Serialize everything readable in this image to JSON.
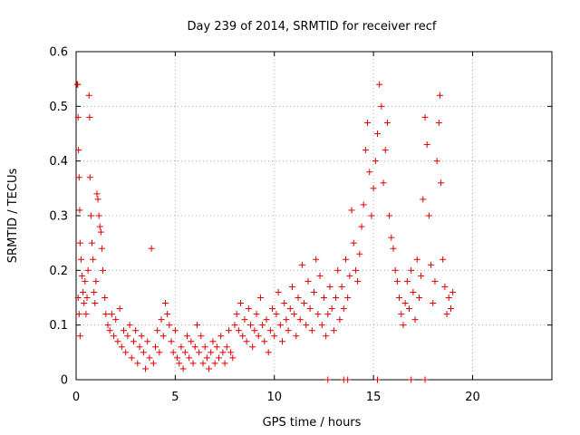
{
  "chart_data": {
    "type": "scatter",
    "title": "Day 239 of 2014, SRMTID for receiver recf",
    "xlabel": "GPS time / hours",
    "ylabel": "SRMTID / TECUs",
    "xlim": [
      0,
      24
    ],
    "ylim": [
      0,
      0.6
    ],
    "xticks": [
      0,
      5,
      10,
      15,
      20
    ],
    "xtick_labels": [
      "0",
      "5",
      "10",
      "15",
      "20"
    ],
    "yticks": [
      0,
      0.1,
      0.2,
      0.3,
      0.4,
      0.5,
      0.6
    ],
    "ytick_labels": [
      "0",
      "0.1",
      "0.2",
      "0.3",
      "0.4",
      "0.5",
      "0.6"
    ],
    "grid": true,
    "marker": "+",
    "color": "#e00000",
    "series": [
      {
        "name": "SRMTID",
        "points": [
          [
            0.05,
            0.54
          ],
          [
            0.08,
            0.54
          ],
          [
            0.1,
            0.48
          ],
          [
            0.12,
            0.42
          ],
          [
            0.15,
            0.37
          ],
          [
            0.18,
            0.31
          ],
          [
            0.2,
            0.25
          ],
          [
            0.1,
            0.15
          ],
          [
            0.15,
            0.12
          ],
          [
            0.2,
            0.08
          ],
          [
            0.25,
            0.22
          ],
          [
            0.3,
            0.19
          ],
          [
            0.35,
            0.16
          ],
          [
            0.4,
            0.14
          ],
          [
            0.45,
            0.18
          ],
          [
            0.5,
            0.12
          ],
          [
            0.55,
            0.15
          ],
          [
            0.6,
            0.2
          ],
          [
            0.65,
            0.52
          ],
          [
            0.68,
            0.48
          ],
          [
            0.7,
            0.37
          ],
          [
            0.75,
            0.3
          ],
          [
            0.8,
            0.25
          ],
          [
            0.85,
            0.22
          ],
          [
            0.9,
            0.16
          ],
          [
            0.95,
            0.14
          ],
          [
            1.0,
            0.18
          ],
          [
            1.05,
            0.34
          ],
          [
            1.1,
            0.33
          ],
          [
            1.15,
            0.3
          ],
          [
            1.2,
            0.28
          ],
          [
            1.25,
            0.27
          ],
          [
            1.3,
            0.24
          ],
          [
            1.35,
            0.2
          ],
          [
            1.45,
            0.15
          ],
          [
            1.5,
            0.12
          ],
          [
            1.6,
            0.1
          ],
          [
            1.7,
            0.09
          ],
          [
            1.8,
            0.12
          ],
          [
            1.9,
            0.08
          ],
          [
            2.0,
            0.11
          ],
          [
            2.1,
            0.07
          ],
          [
            2.2,
            0.13
          ],
          [
            2.3,
            0.06
          ],
          [
            2.4,
            0.09
          ],
          [
            2.5,
            0.05
          ],
          [
            2.6,
            0.08
          ],
          [
            2.7,
            0.1
          ],
          [
            2.8,
            0.04
          ],
          [
            2.9,
            0.07
          ],
          [
            3.0,
            0.09
          ],
          [
            3.1,
            0.03
          ],
          [
            3.2,
            0.06
          ],
          [
            3.3,
            0.08
          ],
          [
            3.4,
            0.05
          ],
          [
            3.5,
            0.02
          ],
          [
            3.6,
            0.07
          ],
          [
            3.7,
            0.04
          ],
          [
            3.8,
            0.24
          ],
          [
            3.9,
            0.03
          ],
          [
            4.0,
            0.06
          ],
          [
            4.1,
            0.09
          ],
          [
            4.2,
            0.05
          ],
          [
            4.3,
            0.11
          ],
          [
            4.4,
            0.08
          ],
          [
            4.5,
            0.14
          ],
          [
            4.6,
            0.12
          ],
          [
            4.7,
            0.1
          ],
          [
            4.8,
            0.07
          ],
          [
            4.9,
            0.05
          ],
          [
            5.0,
            0.09
          ],
          [
            5.1,
            0.04
          ],
          [
            5.2,
            0.03
          ],
          [
            5.3,
            0.06
          ],
          [
            5.4,
            0.02
          ],
          [
            5.5,
            0.05
          ],
          [
            5.6,
            0.08
          ],
          [
            5.7,
            0.04
          ],
          [
            5.8,
            0.07
          ],
          [
            5.9,
            0.03
          ],
          [
            6.0,
            0.06
          ],
          [
            6.1,
            0.1
          ],
          [
            6.2,
            0.05
          ],
          [
            6.3,
            0.08
          ],
          [
            6.4,
            0.03
          ],
          [
            6.5,
            0.06
          ],
          [
            6.6,
            0.04
          ],
          [
            6.7,
            0.02
          ],
          [
            6.8,
            0.05
          ],
          [
            6.9,
            0.07
          ],
          [
            7.0,
            0.03
          ],
          [
            7.1,
            0.06
          ],
          [
            7.2,
            0.04
          ],
          [
            7.3,
            0.08
          ],
          [
            7.4,
            0.05
          ],
          [
            7.5,
            0.03
          ],
          [
            7.6,
            0.06
          ],
          [
            7.7,
            0.09
          ],
          [
            7.8,
            0.05
          ],
          [
            7.9,
            0.04
          ],
          [
            8.0,
            0.1
          ],
          [
            8.1,
            0.12
          ],
          [
            8.2,
            0.09
          ],
          [
            8.3,
            0.14
          ],
          [
            8.4,
            0.08
          ],
          [
            8.5,
            0.11
          ],
          [
            8.6,
            0.07
          ],
          [
            8.7,
            0.13
          ],
          [
            8.8,
            0.1
          ],
          [
            8.9,
            0.06
          ],
          [
            9.0,
            0.09
          ],
          [
            9.1,
            0.12
          ],
          [
            9.2,
            0.08
          ],
          [
            9.3,
            0.15
          ],
          [
            9.4,
            0.1
          ],
          [
            9.5,
            0.07
          ],
          [
            9.6,
            0.11
          ],
          [
            9.7,
            0.05
          ],
          [
            9.8,
            0.09
          ],
          [
            9.9,
            0.13
          ],
          [
            10.0,
            0.08
          ],
          [
            10.1,
            0.12
          ],
          [
            10.2,
            0.16
          ],
          [
            10.3,
            0.1
          ],
          [
            10.4,
            0.07
          ],
          [
            10.5,
            0.14
          ],
          [
            10.6,
            0.11
          ],
          [
            10.7,
            0.09
          ],
          [
            10.8,
            0.13
          ],
          [
            10.9,
            0.17
          ],
          [
            11.0,
            0.12
          ],
          [
            11.1,
            0.08
          ],
          [
            11.2,
            0.15
          ],
          [
            11.3,
            0.11
          ],
          [
            11.4,
            0.21
          ],
          [
            11.5,
            0.14
          ],
          [
            11.6,
            0.1
          ],
          [
            11.7,
            0.18
          ],
          [
            11.8,
            0.13
          ],
          [
            11.9,
            0.09
          ],
          [
            12.0,
            0.16
          ],
          [
            12.1,
            0.22
          ],
          [
            12.2,
            0.12
          ],
          [
            12.3,
            0.19
          ],
          [
            12.4,
            0.1
          ],
          [
            12.5,
            0.15
          ],
          [
            12.6,
            0.08
          ],
          [
            12.7,
            0.12
          ],
          [
            12.8,
            0.17
          ],
          [
            12.9,
            0.13
          ],
          [
            13.0,
            0.09
          ],
          [
            13.1,
            0.15
          ],
          [
            13.2,
            0.2
          ],
          [
            13.3,
            0.11
          ],
          [
            13.4,
            0.17
          ],
          [
            13.5,
            0.13
          ],
          [
            13.6,
            0.22
          ],
          [
            13.7,
            0.15
          ],
          [
            13.8,
            0.19
          ],
          [
            13.9,
            0.31
          ],
          [
            14.0,
            0.25
          ],
          [
            14.1,
            0.2
          ],
          [
            14.2,
            0.18
          ],
          [
            14.3,
            0.23
          ],
          [
            14.4,
            0.28
          ],
          [
            14.5,
            0.32
          ],
          [
            14.6,
            0.42
          ],
          [
            14.7,
            0.47
          ],
          [
            14.8,
            0.38
          ],
          [
            14.9,
            0.3
          ],
          [
            15.0,
            0.35
          ],
          [
            15.1,
            0.4
          ],
          [
            15.2,
            0.45
          ],
          [
            15.3,
            0.54
          ],
          [
            15.4,
            0.5
          ],
          [
            15.5,
            0.36
          ],
          [
            15.6,
            0.42
          ],
          [
            15.7,
            0.47
          ],
          [
            15.8,
            0.3
          ],
          [
            15.9,
            0.26
          ],
          [
            16.0,
            0.24
          ],
          [
            16.1,
            0.2
          ],
          [
            16.2,
            0.18
          ],
          [
            16.3,
            0.15
          ],
          [
            16.4,
            0.12
          ],
          [
            16.5,
            0.1
          ],
          [
            16.6,
            0.14
          ],
          [
            16.7,
            0.18
          ],
          [
            16.8,
            0.13
          ],
          [
            16.9,
            0.2
          ],
          [
            17.0,
            0.16
          ],
          [
            17.1,
            0.11
          ],
          [
            17.2,
            0.22
          ],
          [
            17.3,
            0.15
          ],
          [
            17.4,
            0.19
          ],
          [
            17.5,
            0.33
          ],
          [
            17.6,
            0.48
          ],
          [
            17.7,
            0.43
          ],
          [
            17.8,
            0.3
          ],
          [
            17.9,
            0.21
          ],
          [
            18.0,
            0.14
          ],
          [
            18.1,
            0.18
          ],
          [
            18.2,
            0.4
          ],
          [
            18.3,
            0.47
          ],
          [
            18.35,
            0.52
          ],
          [
            18.4,
            0.36
          ],
          [
            18.5,
            0.22
          ],
          [
            18.6,
            0.17
          ],
          [
            18.7,
            0.12
          ],
          [
            18.8,
            0.15
          ],
          [
            18.9,
            0.13
          ],
          [
            19.0,
            0.16
          ],
          [
            12.7,
            0
          ],
          [
            13.5,
            0
          ],
          [
            13.7,
            0
          ],
          [
            15.2,
            0
          ],
          [
            16.9,
            0
          ],
          [
            17.6,
            0
          ]
        ]
      }
    ]
  }
}
